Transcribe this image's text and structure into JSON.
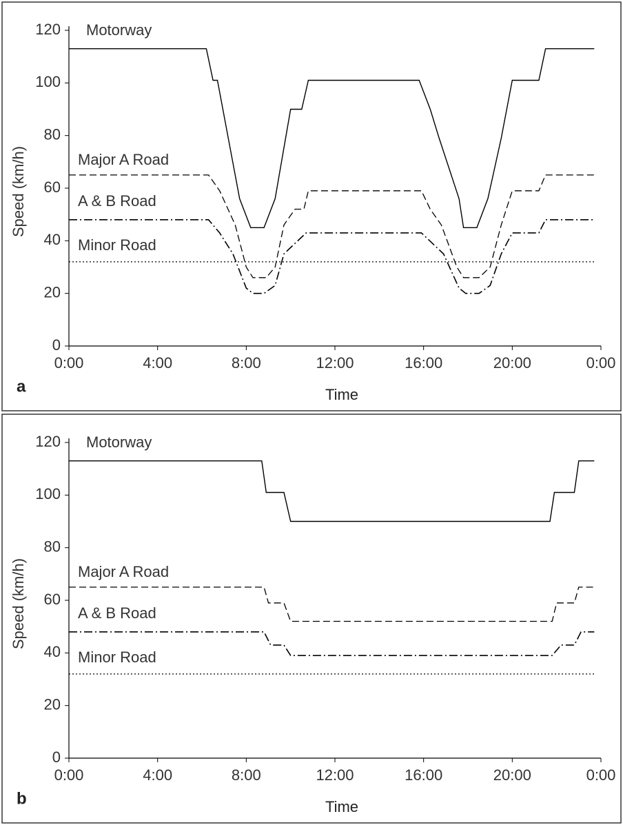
{
  "chart_data": [
    {
      "type": "line",
      "panel_label": "a",
      "xlabel": "Time",
      "ylabel": "Speed (km/h)",
      "xlim": [
        0,
        24
      ],
      "ylim": [
        0,
        120
      ],
      "xticks": [
        {
          "value": 0,
          "label": "0:00"
        },
        {
          "value": 4,
          "label": "4:00"
        },
        {
          "value": 8,
          "label": "8:00"
        },
        {
          "value": 12,
          "label": "12:00"
        },
        {
          "value": 16,
          "label": "16:00"
        },
        {
          "value": 20,
          "label": "20:00"
        },
        {
          "value": 24,
          "label": "0:00"
        }
      ],
      "yticks": [
        0,
        20,
        40,
        60,
        80,
        100,
        120
      ],
      "series": [
        {
          "name": "Motorway",
          "color": "#000000",
          "style": "solid",
          "x": [
            0,
            6.2,
            6.5,
            6.7,
            7.7,
            8.2,
            8.8,
            9.3,
            10.0,
            10.5,
            10.8,
            15.8,
            16.3,
            16.7,
            17.6,
            17.8,
            18.4,
            18.9,
            19.5,
            20.0,
            21.2,
            21.5,
            23.7
          ],
          "values": [
            113,
            113,
            101,
            101,
            56,
            45,
            45,
            56,
            90,
            90,
            101,
            101,
            90,
            79,
            56,
            45,
            45,
            56,
            79,
            101,
            101,
            113,
            113
          ]
        },
        {
          "name": "Major A Road",
          "color": "#000000",
          "style": "dashed",
          "x": [
            0,
            6.3,
            6.8,
            7.5,
            8.0,
            8.3,
            8.9,
            9.3,
            9.7,
            10.2,
            10.6,
            10.8,
            15.9,
            16.3,
            16.8,
            17.5,
            17.8,
            18.5,
            19.0,
            19.5,
            20.0,
            21.2,
            21.5,
            23.7
          ],
          "values": [
            65,
            65,
            59,
            46,
            30,
            26,
            26,
            30,
            46,
            52,
            52,
            59,
            59,
            52,
            46,
            30,
            26,
            26,
            30,
            46,
            59,
            59,
            65,
            65
          ]
        },
        {
          "name": "A & B Road",
          "color": "#000000",
          "style": "dashdot",
          "x": [
            0,
            6.3,
            6.8,
            7.4,
            8.0,
            8.3,
            8.8,
            9.3,
            9.7,
            10.2,
            10.7,
            15.9,
            16.4,
            16.9,
            17.6,
            17.9,
            18.5,
            19.0,
            19.5,
            20.0,
            21.2,
            21.5,
            23.7
          ],
          "values": [
            48,
            48,
            43,
            35,
            22,
            20,
            20,
            23,
            35,
            39,
            43,
            43,
            39,
            35,
            22,
            20,
            20,
            23,
            35,
            43,
            43,
            48,
            48
          ]
        },
        {
          "name": "Minor Road",
          "color": "#000000",
          "style": "dotted",
          "x": [
            0,
            23.7
          ],
          "values": [
            32,
            32
          ]
        }
      ]
    },
    {
      "type": "line",
      "panel_label": "b",
      "xlabel": "Time",
      "ylabel": "Speed (km/h)",
      "xlim": [
        0,
        24
      ],
      "ylim": [
        0,
        120
      ],
      "xticks": [
        {
          "value": 0,
          "label": "0:00"
        },
        {
          "value": 4,
          "label": "4:00"
        },
        {
          "value": 8,
          "label": "8:00"
        },
        {
          "value": 12,
          "label": "12:00"
        },
        {
          "value": 16,
          "label": "16:00"
        },
        {
          "value": 20,
          "label": "20:00"
        },
        {
          "value": 24,
          "label": "0:00"
        }
      ],
      "yticks": [
        0,
        20,
        40,
        60,
        80,
        100,
        120
      ],
      "series": [
        {
          "name": "Motorway",
          "color": "#000000",
          "style": "solid",
          "x": [
            0,
            8.7,
            8.9,
            9.7,
            10.0,
            21.7,
            21.9,
            22.8,
            23.0,
            23.7
          ],
          "values": [
            113,
            113,
            101,
            101,
            90,
            90,
            101,
            101,
            113,
            113
          ]
        },
        {
          "name": "Major A Road",
          "color": "#000000",
          "style": "dashed",
          "x": [
            0,
            8.8,
            9.0,
            9.7,
            10.0,
            21.8,
            22.0,
            22.8,
            23.0,
            23.7
          ],
          "values": [
            65,
            65,
            59,
            59,
            52,
            52,
            59,
            59,
            65,
            65
          ]
        },
        {
          "name": "A & B Road",
          "color": "#000000",
          "style": "dashdot",
          "x": [
            0,
            8.8,
            9.1,
            9.7,
            10.0,
            21.8,
            22.2,
            22.8,
            23.1,
            23.7
          ],
          "values": [
            48,
            48,
            43,
            43,
            39,
            39,
            43,
            43,
            48,
            48
          ]
        },
        {
          "name": "Minor Road",
          "color": "#000000",
          "style": "dotted",
          "x": [
            0,
            23.7
          ],
          "values": [
            32,
            32
          ]
        }
      ]
    }
  ]
}
